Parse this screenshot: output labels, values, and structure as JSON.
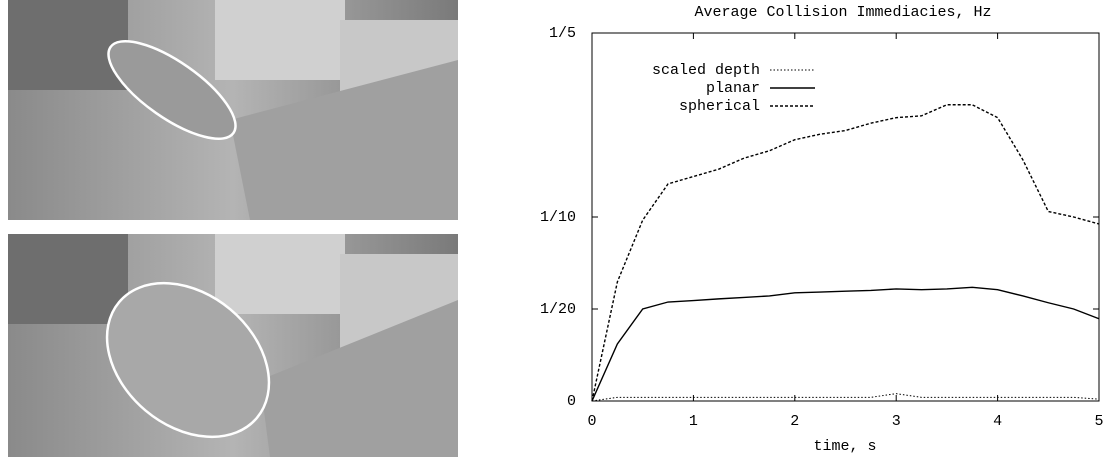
{
  "chart_data": {
    "type": "line",
    "title": "Average Collision Immediacies, Hz",
    "xlabel": "time, s",
    "x": [
      0,
      0.25,
      0.5,
      0.75,
      1,
      1.25,
      1.5,
      1.75,
      2,
      2.25,
      2.5,
      2.75,
      3,
      3.25,
      3.5,
      3.75,
      4,
      4.25,
      4.5,
      4.75,
      5
    ],
    "series": [
      {
        "name": "scaled depth",
        "color": "#000000",
        "style": "dotted",
        "values": [
          0,
          0.002,
          0.002,
          0.002,
          0.002,
          0.002,
          0.002,
          0.002,
          0.002,
          0.002,
          0.002,
          0.002,
          0.004,
          0.002,
          0.002,
          0.002,
          0.002,
          0.002,
          0.002,
          0.002,
          0.001
        ]
      },
      {
        "name": "planar",
        "color": "#000000",
        "style": "solid",
        "values": [
          0,
          0.031,
          0.05,
          0.0538,
          0.0546,
          0.0555,
          0.0563,
          0.0571,
          0.0588,
          0.0592,
          0.0597,
          0.0601,
          0.0609,
          0.0605,
          0.0609,
          0.0618,
          0.0605,
          0.0571,
          0.0534,
          0.05,
          0.0447
        ]
      },
      {
        "name": "spherical",
        "color": "#000000",
        "style": "dashed",
        "values": [
          0,
          0.0647,
          0.0983,
          0.118,
          0.122,
          0.126,
          0.132,
          0.136,
          0.142,
          0.145,
          0.147,
          0.151,
          0.154,
          0.155,
          0.161,
          0.161,
          0.154,
          0.131,
          0.103,
          0.1,
          0.0962
        ]
      }
    ],
    "xlim": [
      0,
      5
    ],
    "xticks": [
      0,
      1,
      2,
      3,
      4,
      5
    ],
    "ylim": [
      0,
      0.2
    ],
    "yticks": [
      0,
      {
        "value": 0.05,
        "label": "1/20"
      },
      {
        "value": 0.1,
        "label": "1/10"
      },
      {
        "value": 0.2,
        "label": "1/5"
      }
    ],
    "legend": "upper-left",
    "grid": false
  }
}
